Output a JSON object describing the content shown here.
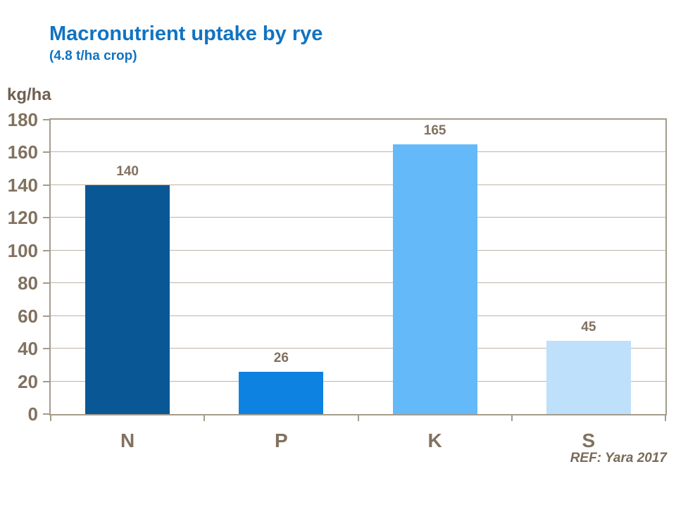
{
  "header": {
    "title": "Macronutrient uptake by rye",
    "subtitle": "(4.8 t/ha crop)",
    "title_color": "#1173C1"
  },
  "chart_data": {
    "type": "bar",
    "title": "Macronutrient uptake by rye",
    "subtitle": "(4.8 t/ha crop)",
    "categories": [
      "N",
      "P",
      "K",
      "S"
    ],
    "values": [
      140,
      26,
      165,
      45
    ],
    "bar_colors": [
      "#0A5796",
      "#0E82E0",
      "#64B9F8",
      "#BEE0FB"
    ],
    "ylabel": "kg/ha",
    "xlabel": "",
    "ylim": [
      0,
      180
    ],
    "ytick_step": 20,
    "grid": true,
    "legend_position": "none"
  },
  "footer": {
    "ref": "REF: Yara 2017"
  },
  "colors": {
    "axis_frame": "#A59B8D",
    "gridline": "#BDB4A8",
    "tick_label": "#81715F",
    "unit_label": "#6F6050",
    "ref_text": "#7A6A58",
    "background": "#FFFFFF"
  }
}
